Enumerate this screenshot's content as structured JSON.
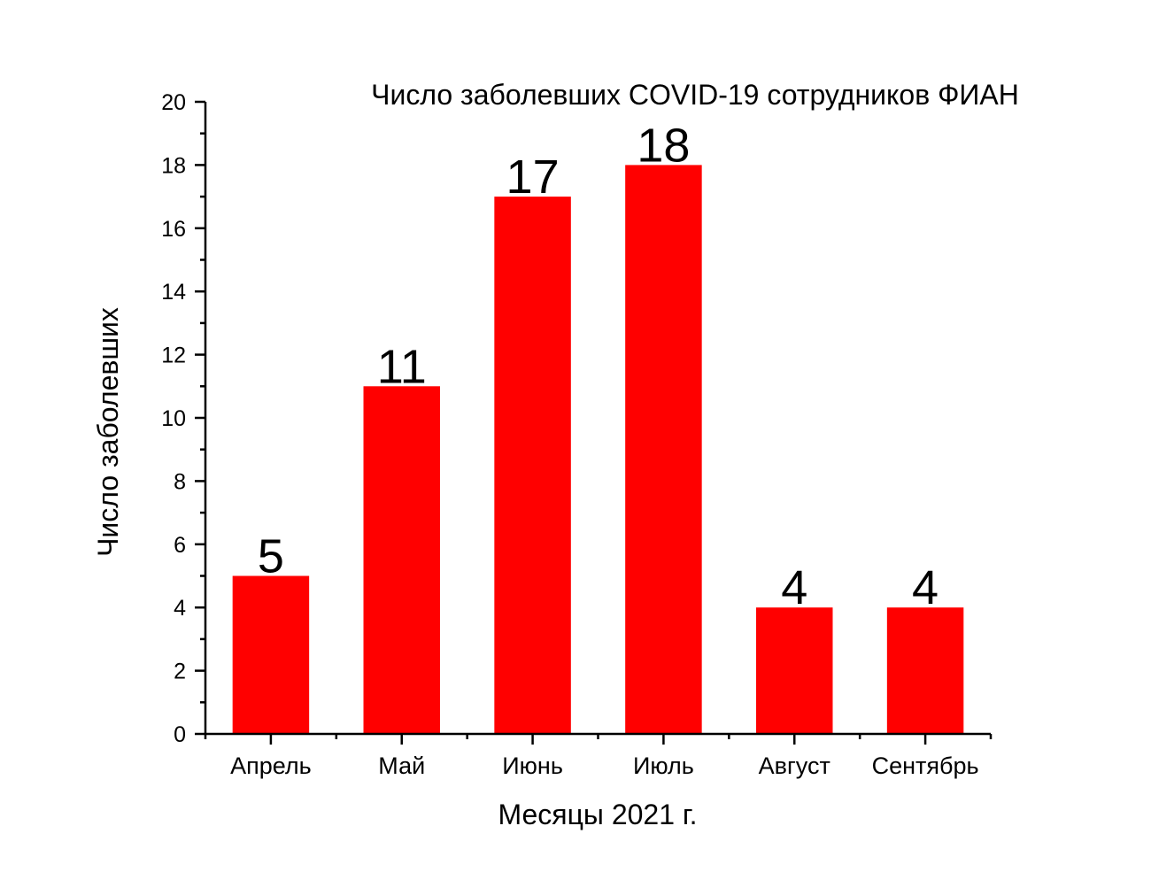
{
  "chart_data": {
    "type": "bar",
    "title": "Число заболевших COVID-19 сотрудников ФИАН",
    "xlabel": "Месяцы 2021 г.",
    "ylabel": "Число заболевших",
    "categories": [
      "Апрель",
      "Май",
      "Июнь",
      "Июль",
      "Август",
      "Сентябрь"
    ],
    "values": [
      5,
      11,
      17,
      18,
      4,
      4
    ],
    "data_labels": [
      "5",
      "11",
      "17",
      "18",
      "4",
      "4"
    ],
    "ylim": [
      0,
      20
    ],
    "yticks": [
      0,
      2,
      4,
      6,
      8,
      10,
      12,
      14,
      16,
      18,
      20
    ],
    "ytick_labels": [
      "0",
      "2",
      "4",
      "6",
      "8",
      "10",
      "12",
      "14",
      "16",
      "18",
      "20"
    ],
    "grid": false,
    "legend": "none",
    "bar_color": "#ff0000"
  }
}
